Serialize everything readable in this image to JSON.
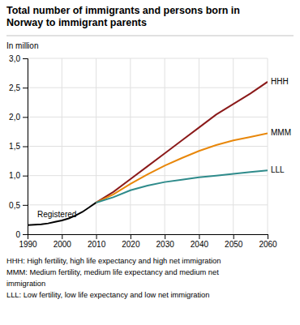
{
  "chart_data": {
    "type": "line",
    "title": [
      "Total number of immigrants and persons born in",
      "Norway to immigrant parents"
    ],
    "ylabel": "In million",
    "xlim": [
      1990,
      2060
    ],
    "ylim": [
      0,
      3.0
    ],
    "xticks": [
      1990,
      2000,
      2010,
      2020,
      2030,
      2040,
      2050,
      2060
    ],
    "yticks": [
      0,
      {
        "value": 0.5,
        "label": "0,5"
      },
      {
        "value": 1.0,
        "label": "1,0"
      },
      {
        "value": 1.5,
        "label": "1,5"
      },
      {
        "value": 2.0,
        "label": "2,0"
      },
      {
        "value": 2.5,
        "label": "2,5"
      },
      {
        "value": 3.0,
        "label": "3,0"
      }
    ],
    "grid": true,
    "series": [
      {
        "name": "Registered",
        "color": "#000000",
        "x": [
          1990,
          1992,
          1994,
          1996,
          1998,
          2000,
          2002,
          2004,
          2006,
          2008,
          2010
        ],
        "values": [
          0.155,
          0.162,
          0.17,
          0.185,
          0.21,
          0.235,
          0.27,
          0.32,
          0.38,
          0.46,
          0.54
        ]
      },
      {
        "name": "HHH",
        "color": "#8B1A1A",
        "x": [
          2010,
          2015,
          2020,
          2025,
          2030,
          2035,
          2040,
          2045,
          2050,
          2055,
          2060
        ],
        "values": [
          0.54,
          0.72,
          0.94,
          1.16,
          1.38,
          1.6,
          1.82,
          2.04,
          2.22,
          2.4,
          2.6
        ]
      },
      {
        "name": "MMM",
        "color": "#E8870A",
        "x": [
          2010,
          2015,
          2020,
          2025,
          2030,
          2035,
          2040,
          2045,
          2050,
          2055,
          2060
        ],
        "values": [
          0.54,
          0.68,
          0.86,
          1.02,
          1.17,
          1.3,
          1.42,
          1.52,
          1.6,
          1.66,
          1.72
        ]
      },
      {
        "name": "LLL",
        "color": "#2E8B8B",
        "x": [
          2010,
          2015,
          2020,
          2025,
          2030,
          2035,
          2040,
          2045,
          2050,
          2055,
          2060
        ],
        "values": [
          0.54,
          0.63,
          0.75,
          0.83,
          0.89,
          0.93,
          0.97,
          1.0,
          1.03,
          1.06,
          1.09
        ]
      }
    ],
    "annotations": [
      "HHH: High fertility, high life expectancy and high net immigration",
      "MMM: Medium fertility, medium life expectancy and medium net",
      "immigration",
      "LLL: Low fertility, low life expectancy and low net immigration"
    ]
  }
}
